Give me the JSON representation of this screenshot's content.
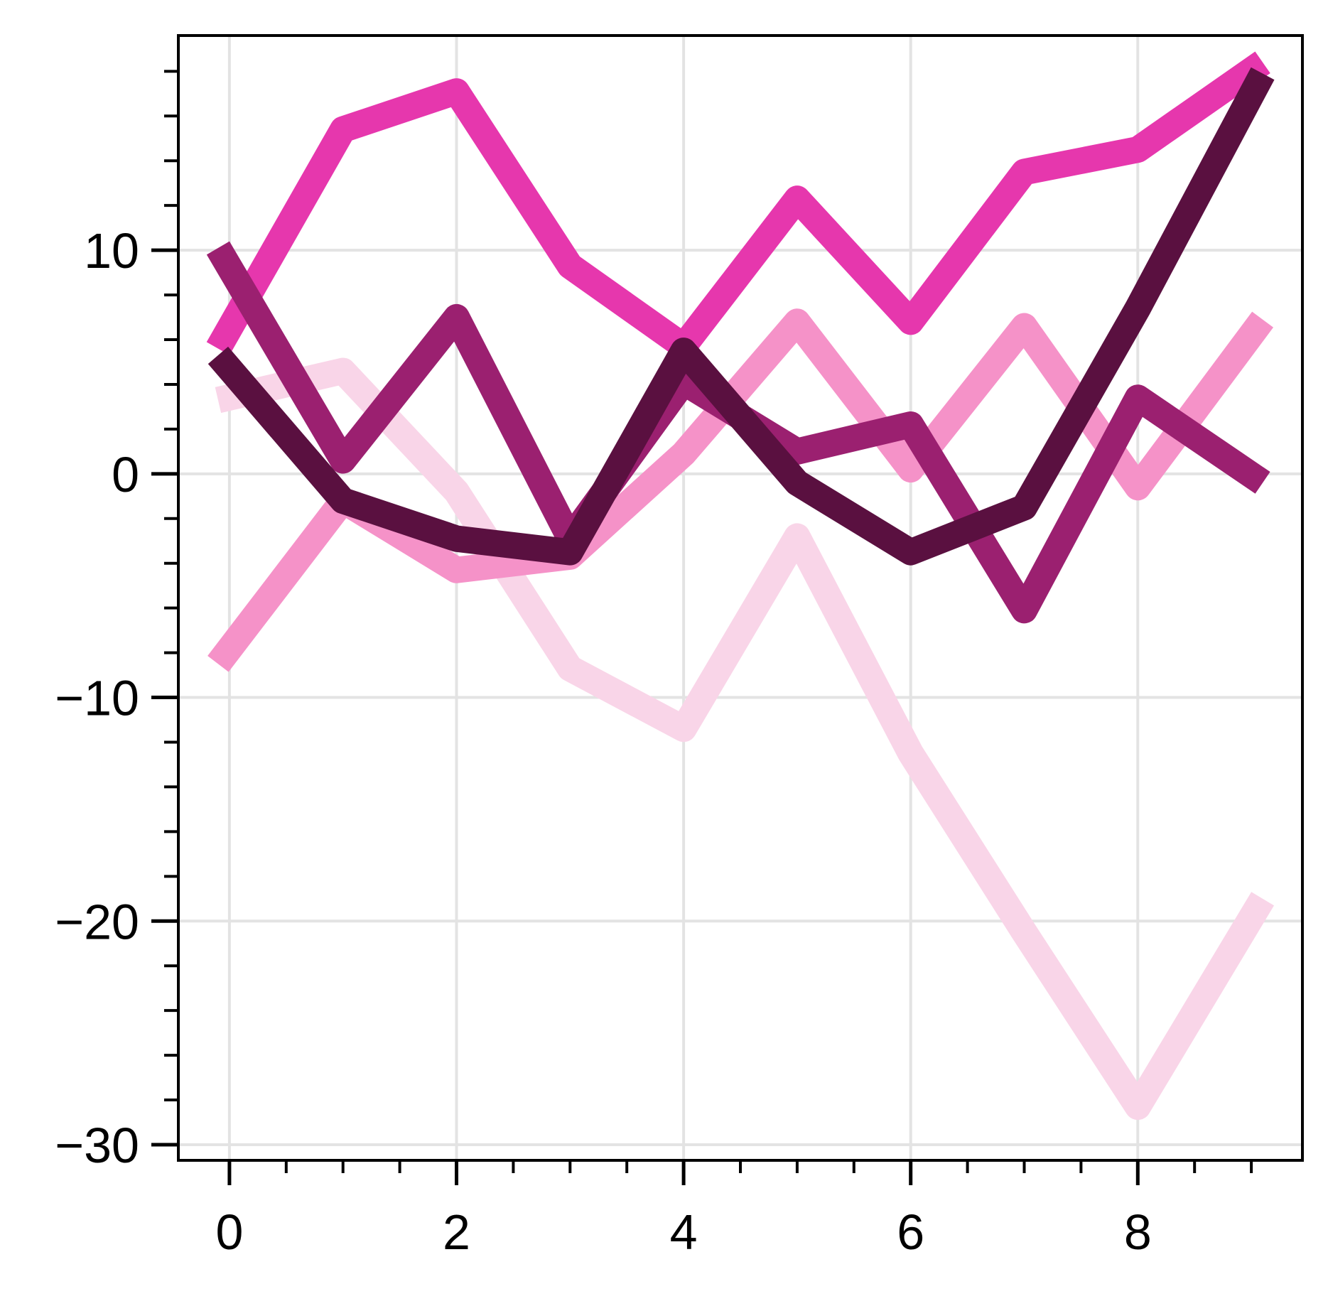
{
  "chart_data": {
    "type": "line",
    "title": "",
    "xlabel": "",
    "ylabel": "",
    "xlim": [
      -0.45,
      9.45
    ],
    "ylim": [
      -30.7,
      19.6
    ],
    "grid": true,
    "legend": "none",
    "x_ticks": [
      0,
      2,
      4,
      6,
      8
    ],
    "x_tick_labels": [
      "0",
      "2",
      "4",
      "6",
      "8"
    ],
    "x_minor_ticks": [
      0.5,
      1,
      1.5,
      2.5,
      3,
      3.5,
      4.5,
      5,
      5.5,
      6.5,
      7,
      7.5,
      8.5,
      9
    ],
    "y_ticks": [
      -30,
      -20,
      -10,
      0,
      10
    ],
    "y_tick_labels": [
      "−30",
      "−20",
      "−10",
      "0",
      "10"
    ],
    "y_minor_ticks": [
      -28,
      -26,
      -24,
      -22,
      -18,
      -16,
      -14,
      -12,
      -8,
      -6,
      -4,
      -2,
      2,
      4,
      6,
      8,
      12,
      14,
      16,
      18
    ],
    "series": [
      {
        "color": "#f9d5e8",
        "width": 12,
        "x": [
          -0.1,
          1,
          2,
          3,
          4,
          5,
          6,
          7,
          8,
          9.1
        ],
        "y": [
          3.3,
          4.6,
          -0.8,
          -8.7,
          -11.4,
          -2.8,
          -12.5,
          -20.5,
          -28.3,
          -19.0
        ]
      },
      {
        "color": "#f592c8",
        "width": 12,
        "x": [
          -0.1,
          1,
          2,
          3,
          4,
          5,
          6,
          7,
          8,
          9.1
        ],
        "y": [
          -8.5,
          -1.2,
          -4.3,
          -3.7,
          0.9,
          6.8,
          0.2,
          6.6,
          -0.6,
          6.9
        ]
      },
      {
        "color": "#e637ad",
        "width": 12,
        "x": [
          -0.1,
          1,
          2,
          3,
          4,
          5,
          6,
          7,
          8,
          9.1
        ],
        "y": [
          5.6,
          15.4,
          17.1,
          9.3,
          5.7,
          12.3,
          6.8,
          13.5,
          14.5,
          18.4
        ]
      },
      {
        "color": "#9b2070",
        "width": 12,
        "x": [
          -0.1,
          1,
          2,
          3,
          4,
          5,
          6,
          7,
          8,
          9.1
        ],
        "y": [
          10.1,
          0.6,
          7.0,
          -2.9,
          4.1,
          1.0,
          2.2,
          -6.1,
          3.4,
          -0.4
        ]
      },
      {
        "color": "#5a1040",
        "width": 12,
        "x": [
          -0.1,
          1,
          2,
          3,
          4,
          5,
          6,
          7,
          8,
          9.1
        ],
        "y": [
          5.3,
          -1.2,
          -2.9,
          -3.5,
          5.5,
          -0.4,
          -3.5,
          -1.5,
          7.4,
          17.9
        ]
      }
    ]
  }
}
